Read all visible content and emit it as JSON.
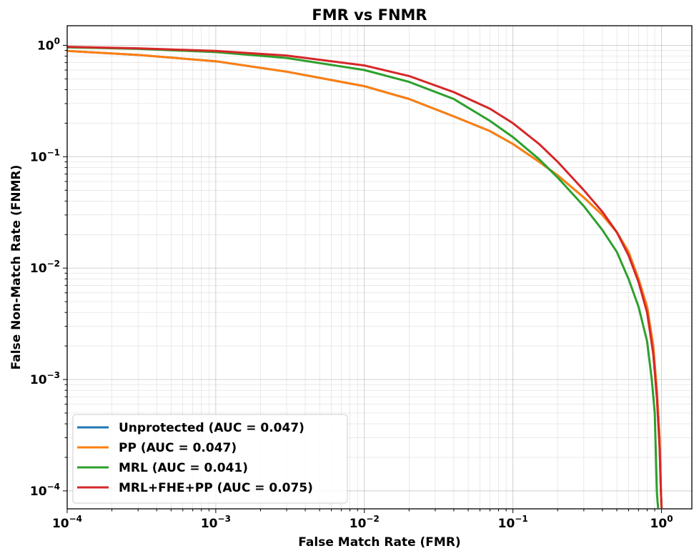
{
  "chart_data": {
    "type": "line",
    "title": "FMR vs FNMR",
    "xlabel": "False Match Rate (FMR)",
    "ylabel": "False Non-Match Rate (FNMR)",
    "xscale": "log",
    "yscale": "log",
    "xlim": [
      0.0001,
      1.6
    ],
    "ylim": [
      6.9e-05,
      1.5
    ],
    "grid": "major and minor",
    "legend_position": "lower-left",
    "x_ticks": [
      {
        "value": 0.0001,
        "base": "10",
        "exp": "−4"
      },
      {
        "value": 0.001,
        "base": "10",
        "exp": "−3"
      },
      {
        "value": 0.01,
        "base": "10",
        "exp": "−2"
      },
      {
        "value": 0.1,
        "base": "10",
        "exp": "−1"
      },
      {
        "value": 1,
        "base": "10",
        "exp": "0"
      }
    ],
    "y_ticks": [
      {
        "value": 0.0001,
        "base": "10",
        "exp": "−4"
      },
      {
        "value": 0.001,
        "base": "10",
        "exp": "−3"
      },
      {
        "value": 0.01,
        "base": "10",
        "exp": "−2"
      },
      {
        "value": 0.1,
        "base": "10",
        "exp": "−1"
      },
      {
        "value": 1,
        "base": "10",
        "exp": "0"
      }
    ],
    "series": [
      {
        "name": "Unprotected (AUC = 0.047)",
        "color": "#1f77b4",
        "x": [
          0.0001,
          0.0003,
          0.001,
          0.003,
          0.01,
          0.02,
          0.04,
          0.07,
          0.1,
          0.15,
          0.2,
          0.3,
          0.4,
          0.5,
          0.6,
          0.7,
          0.8,
          0.88,
          0.93,
          0.97,
          0.99,
          1.0
        ],
        "y": [
          0.89,
          0.82,
          0.72,
          0.58,
          0.43,
          0.33,
          0.23,
          0.17,
          0.13,
          0.09,
          0.068,
          0.043,
          0.03,
          0.021,
          0.014,
          0.008,
          0.0045,
          0.002,
          0.0008,
          0.0003,
          0.0001,
          7e-05
        ]
      },
      {
        "name": "PP (AUC = 0.047)",
        "color": "#ff7f0e",
        "x": [
          0.0001,
          0.0003,
          0.001,
          0.003,
          0.01,
          0.02,
          0.04,
          0.07,
          0.1,
          0.15,
          0.2,
          0.3,
          0.4,
          0.5,
          0.6,
          0.7,
          0.8,
          0.88,
          0.93,
          0.97,
          0.99,
          1.0
        ],
        "y": [
          0.89,
          0.82,
          0.72,
          0.58,
          0.43,
          0.33,
          0.23,
          0.17,
          0.13,
          0.09,
          0.068,
          0.043,
          0.03,
          0.021,
          0.014,
          0.008,
          0.0045,
          0.002,
          0.0008,
          0.0003,
          0.0001,
          7e-05
        ]
      },
      {
        "name": "MRL (AUC = 0.041)",
        "color": "#2ca02c",
        "x": [
          0.0001,
          0.0003,
          0.001,
          0.003,
          0.01,
          0.02,
          0.04,
          0.07,
          0.1,
          0.15,
          0.2,
          0.3,
          0.4,
          0.5,
          0.6,
          0.7,
          0.8,
          0.86,
          0.9,
          0.93,
          0.94,
          0.95
        ],
        "y": [
          0.96,
          0.93,
          0.87,
          0.77,
          0.6,
          0.47,
          0.33,
          0.21,
          0.15,
          0.095,
          0.065,
          0.036,
          0.022,
          0.014,
          0.008,
          0.0045,
          0.0022,
          0.001,
          0.0005,
          0.0001,
          8e-05,
          7e-05
        ]
      },
      {
        "name": "MRL+FHE+PP (AUC = 0.075)",
        "color": "#d62728",
        "x": [
          0.0001,
          0.0003,
          0.001,
          0.003,
          0.01,
          0.02,
          0.04,
          0.07,
          0.1,
          0.15,
          0.2,
          0.3,
          0.4,
          0.5,
          0.6,
          0.7,
          0.8,
          0.88,
          0.93,
          0.97,
          0.99,
          1.0
        ],
        "y": [
          0.97,
          0.94,
          0.89,
          0.81,
          0.66,
          0.53,
          0.38,
          0.27,
          0.2,
          0.13,
          0.09,
          0.05,
          0.032,
          0.021,
          0.013,
          0.0075,
          0.004,
          0.0017,
          0.0007,
          0.00025,
          0.0001,
          7e-05
        ]
      }
    ]
  }
}
